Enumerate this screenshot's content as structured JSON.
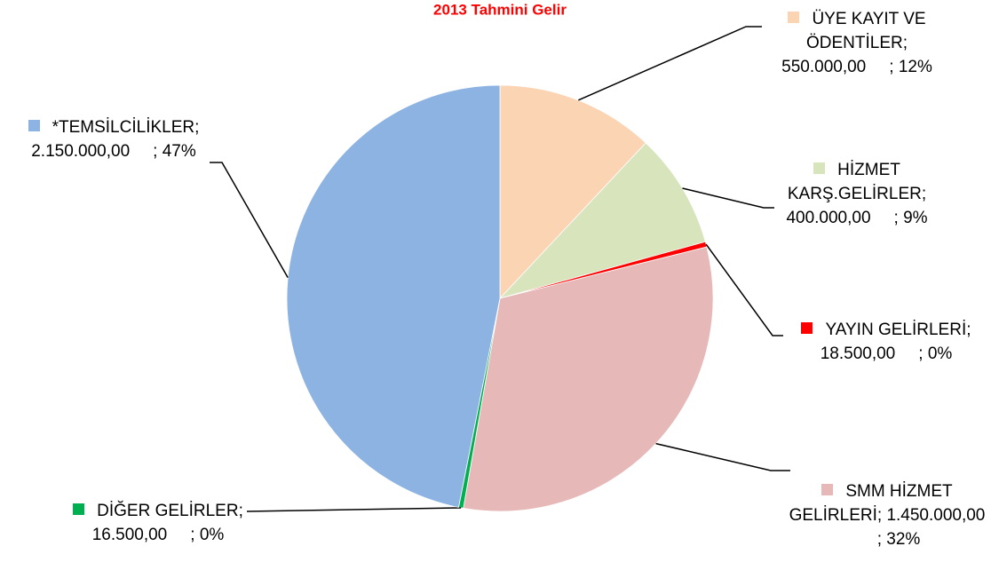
{
  "chart_data": {
    "type": "pie",
    "title": "2013 Tahmini Gelir",
    "categories": [
      "ÜYE KAYIT VE ÖDENTİLER",
      "HİZMET KARŞ.GELİRLER",
      "YAYIN GELİRLERİ",
      "SMM HİZMET GELİRLERİ",
      "DİĞER GELİRLER",
      "*TEMSİLCİLİKLER"
    ],
    "values": [
      550000,
      400000,
      18500,
      1450000,
      16500,
      2150000
    ],
    "value_labels": [
      "550.000,00",
      "400.000,00",
      "18.500,00",
      "1.450.000,00",
      "16.500,00",
      "2.150.000,00"
    ],
    "percent_labels": [
      "12%",
      "9%",
      "0%",
      "32%",
      "0%",
      "47%"
    ],
    "label_separator": ";",
    "colors": [
      "#fbd4b4",
      "#d7e4bc",
      "#ff0000",
      "#e6b9b8",
      "#00b050",
      "#8db3e2"
    ]
  }
}
